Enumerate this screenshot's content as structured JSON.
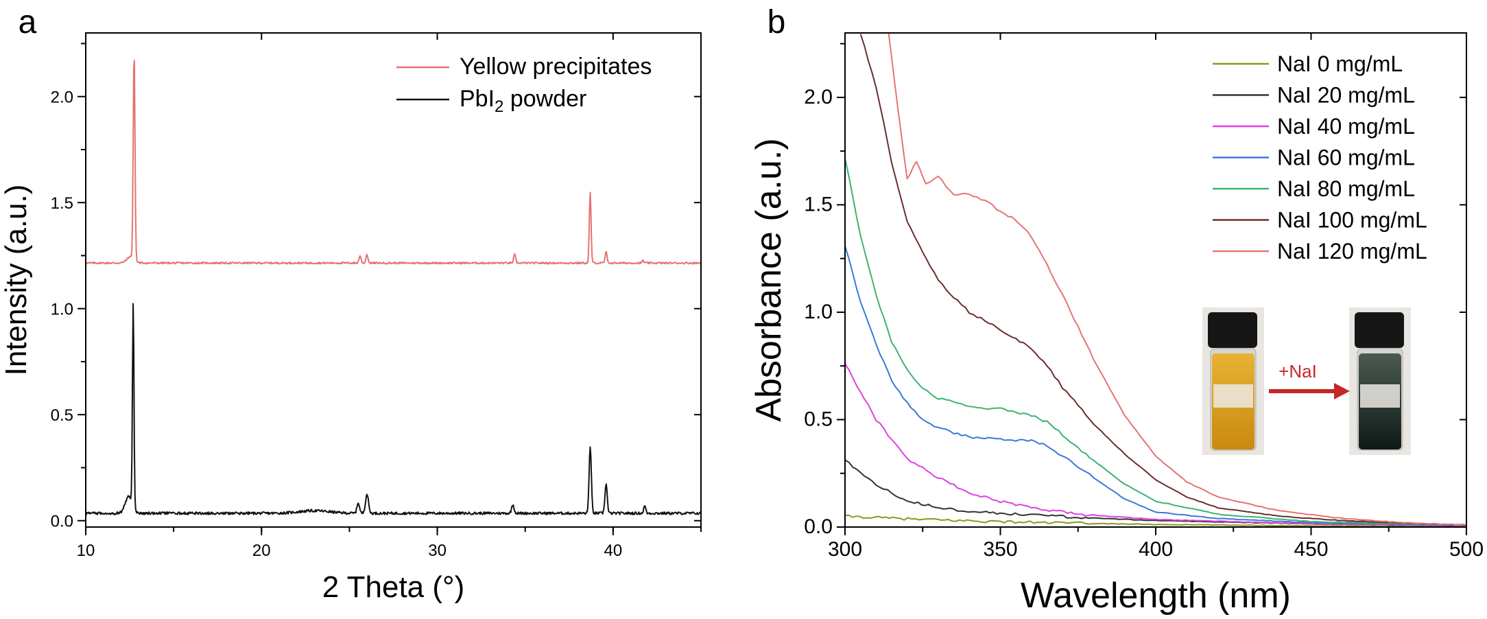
{
  "chart_data": [
    {
      "panel_label": "a",
      "type": "line",
      "xlabel": "2 Theta (°)",
      "ylabel": "Intensity (a.u.)",
      "xlim": [
        10,
        45
      ],
      "ylim": [
        -0.03,
        2.3
      ],
      "xticks": [
        "10",
        "20",
        "30",
        "40"
      ],
      "yticks": [
        "0.0",
        "0.5",
        "1.0",
        "1.5",
        "2.0"
      ],
      "legend": {
        "position": "top-right",
        "entries": [
          "Yellow precipitates",
          "PbI2 powder"
        ]
      },
      "series": [
        {
          "name": "Yellow precipitates",
          "legend_main": "Yellow precipitates",
          "color": "#e57373",
          "baseline": 1.215,
          "noise": 0.004,
          "peaks": [
            {
              "x": 12.75,
              "h": 0.98,
              "w": 0.07
            },
            {
              "x": 12.55,
              "h": 0.03,
              "w": 0.3
            },
            {
              "x": 25.6,
              "h": 0.035,
              "w": 0.08
            },
            {
              "x": 26.0,
              "h": 0.04,
              "w": 0.08
            },
            {
              "x": 34.4,
              "h": 0.04,
              "w": 0.08
            },
            {
              "x": 38.7,
              "h": 0.33,
              "w": 0.07
            },
            {
              "x": 39.6,
              "h": 0.055,
              "w": 0.07
            },
            {
              "x": 41.7,
              "h": 0.012,
              "w": 0.07
            }
          ]
        },
        {
          "name": "PbI2 powder",
          "legend_main": "PbI",
          "legend_sub": "2",
          "legend_tail": " powder",
          "color": "#111111",
          "baseline": 0.035,
          "noise": 0.006,
          "peaks": [
            {
              "x": 12.7,
              "h": 0.96,
              "w": 0.06
            },
            {
              "x": 12.45,
              "h": 0.08,
              "w": 0.28
            },
            {
              "x": 25.5,
              "h": 0.05,
              "w": 0.1
            },
            {
              "x": 26.0,
              "h": 0.09,
              "w": 0.12
            },
            {
              "x": 23.0,
              "h": 0.012,
              "w": 1.2
            },
            {
              "x": 34.3,
              "h": 0.04,
              "w": 0.1
            },
            {
              "x": 38.7,
              "h": 0.31,
              "w": 0.09
            },
            {
              "x": 39.6,
              "h": 0.14,
              "w": 0.09
            },
            {
              "x": 41.8,
              "h": 0.035,
              "w": 0.08
            }
          ]
        }
      ]
    },
    {
      "panel_label": "b",
      "type": "line",
      "xlabel": "Wavelength (nm)",
      "ylabel": "Absorbance (a.u.)",
      "xlim": [
        300,
        500
      ],
      "ylim": [
        0,
        2.3
      ],
      "xticks": [
        "300",
        "350",
        "400",
        "450",
        "500"
      ],
      "yticks": [
        "0.0",
        "0.5",
        "1.0",
        "1.5",
        "2.0"
      ],
      "legend": {
        "position": "top-right"
      },
      "inset": {
        "arrow_label": "+NaI"
      },
      "series": [
        {
          "name": "NaI 0 mg/mL",
          "color": "#8a9a1e",
          "x": [
            300,
            325,
            350,
            375,
            400,
            450,
            500
          ],
          "y": [
            0.05,
            0.035,
            0.025,
            0.018,
            0.012,
            0.006,
            0.004
          ]
        },
        {
          "name": "NaI 20 mg/mL",
          "color": "#333333",
          "x": [
            300,
            310,
            320,
            335,
            350,
            375,
            400,
            450,
            500
          ],
          "y": [
            0.31,
            0.2,
            0.12,
            0.08,
            0.065,
            0.045,
            0.03,
            0.015,
            0.006
          ]
        },
        {
          "name": "NaI 40 mg/mL",
          "color": "#e040e0",
          "x": [
            300,
            310,
            320,
            330,
            340,
            350,
            360,
            375,
            400,
            450,
            500
          ],
          "y": [
            0.76,
            0.5,
            0.32,
            0.23,
            0.16,
            0.12,
            0.09,
            0.06,
            0.035,
            0.015,
            0.006
          ]
        },
        {
          "name": "NaI 60 mg/mL",
          "color": "#3b78d8",
          "x": [
            300,
            305,
            310,
            315,
            320,
            325,
            330,
            340,
            350,
            360,
            365,
            370,
            380,
            390,
            400,
            420,
            450,
            500
          ],
          "y": [
            1.31,
            1.05,
            0.85,
            0.68,
            0.58,
            0.5,
            0.46,
            0.42,
            0.41,
            0.4,
            0.38,
            0.33,
            0.23,
            0.13,
            0.07,
            0.04,
            0.02,
            0.008
          ]
        },
        {
          "name": "NaI 80 mg/mL",
          "color": "#3cb371",
          "x": [
            300,
            305,
            310,
            315,
            320,
            325,
            330,
            340,
            350,
            360,
            365,
            370,
            380,
            390,
            400,
            420,
            450,
            500
          ],
          "y": [
            1.72,
            1.35,
            1.08,
            0.86,
            0.73,
            0.65,
            0.6,
            0.56,
            0.55,
            0.52,
            0.49,
            0.43,
            0.31,
            0.2,
            0.12,
            0.06,
            0.025,
            0.01
          ]
        },
        {
          "name": "NaI 100 mg/mL",
          "color": "#6b2d2d",
          "x": [
            305,
            310,
            315,
            320,
            325,
            330,
            335,
            340,
            350,
            360,
            365,
            370,
            380,
            390,
            400,
            410,
            420,
            440,
            460,
            480,
            500
          ],
          "y": [
            2.3,
            2.05,
            1.7,
            1.42,
            1.28,
            1.15,
            1.07,
            1.0,
            0.92,
            0.83,
            0.75,
            0.65,
            0.48,
            0.34,
            0.22,
            0.14,
            0.09,
            0.05,
            0.03,
            0.018,
            0.01
          ]
        },
        {
          "name": "NaI 120 mg/mL",
          "color": "#e57373",
          "x": [
            314,
            317,
            320,
            323,
            326,
            330,
            335,
            340,
            345,
            350,
            355,
            360,
            365,
            370,
            375,
            380,
            390,
            400,
            410,
            420,
            440,
            460,
            480,
            500
          ],
          "y": [
            2.3,
            1.95,
            1.62,
            1.7,
            1.6,
            1.63,
            1.55,
            1.55,
            1.52,
            1.47,
            1.43,
            1.35,
            1.22,
            1.08,
            0.93,
            0.78,
            0.52,
            0.33,
            0.21,
            0.14,
            0.075,
            0.04,
            0.02,
            0.01
          ]
        }
      ]
    }
  ]
}
